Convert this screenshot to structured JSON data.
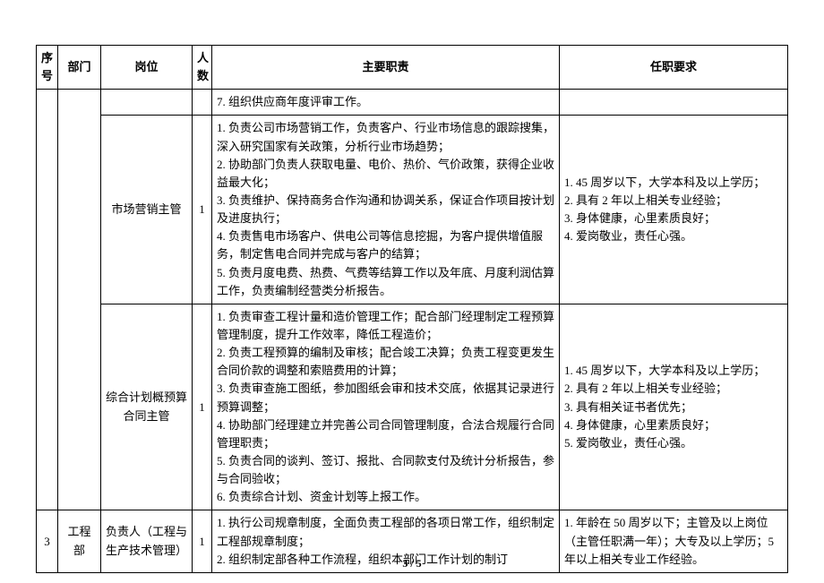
{
  "headers": {
    "seq": "序号",
    "dept": "部门",
    "position": "岗位",
    "count": "人数",
    "duties": "主要职责",
    "requirements": "任职要求"
  },
  "row_prev_duty": "7. 组织供应商年度评审工作。",
  "marketing": {
    "position": "市场营销主管",
    "count": "1",
    "duties": [
      "1. 负责公司市场营销工作，负责客户、行业市场信息的跟踪搜集，深入研究国家有关政策，分析行业市场趋势；",
      "2. 协助部门负责人获取电量、电价、热价、气价政策，获得企业收益最大化；",
      "3. 负责维护、保持商务合作沟通和协调关系，保证合作项目按计划及进度执行；",
      "4. 负责售电市场客户、供电公司等信息挖掘，为客户提供增值服务，制定售电合同并完成与客户的结算；",
      "5. 负责月度电费、热费、气费等结算工作以及年底、月度利润估算工作，负责编制经营类分析报告。"
    ],
    "requirements": [
      "1. 45 周岁以下，大学本科及以上学历；",
      "2. 具有 2 年以上相关专业经验；",
      "3. 身体健康，心里素质良好；",
      "4. 爱岗敬业，责任心强。"
    ]
  },
  "planner": {
    "position": "综合计划概预算合同主管",
    "count": "1",
    "duties": [
      "1. 负责审查工程计量和造价管理工作；配合部门经理制定工程预算管理制度，提升工作效率，降低工程造价；",
      "2. 负责工程预算的编制及审核；配合竣工决算；负责工程变更发生合同价款的调整和索赔费用的计算；",
      "3. 负责审查施工图纸，参加图纸会审和技术交底，依据其记录进行预算调整；",
      "4. 协助部门经理建立并完善公司合同管理制度，合法合规履行合同管理职责；",
      "5. 负责合同的谈判、签订、报批、合同款支付及统计分析报告，参与合同验收；",
      "6. 负责综合计划、资金计划等上报工作。"
    ],
    "requirements": [
      "1. 45 周岁以下，大学本科及以上学历；",
      "2. 具有 2 年以上相关专业经验；",
      "3. 具有相关证书者优先；",
      "4. 身体健康，心里素质良好；",
      "5. 爱岗敬业，责任心强。"
    ]
  },
  "engineering": {
    "seq": "3",
    "dept": "工程部",
    "position": "负责人（工程与生产技术管理）",
    "count": "1",
    "duties": [
      "1. 执行公司规章制度，全面负责工程部的各项日常工作，组织制定工程部规章制度；",
      "2. 组织制定部各种工作流程，组织本部门工作计划的制订"
    ],
    "requirements": [
      "1. 年龄在 50 周岁以下；主管及以上岗位（主管任职满一年）；大专及以上学历；5 年以上相关专业工作经验。"
    ]
  },
  "page_number": "3 / 5"
}
